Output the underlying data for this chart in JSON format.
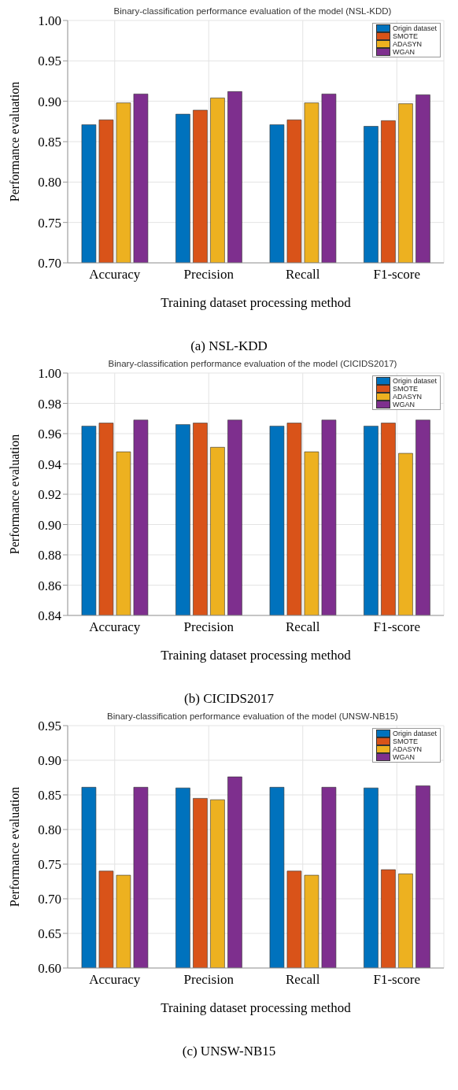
{
  "chart_data": [
    {
      "type": "bar",
      "title": "Binary-classification performance evaluation of the model (NSL-KDD)",
      "xlabel": "Training dataset processing method",
      "ylabel": "Performance evaluation",
      "categories": [
        "Accuracy",
        "Precision",
        "Recall",
        "F1-score"
      ],
      "series": [
        {
          "name": "Origin dataset",
          "color": "#0072bd",
          "values": [
            0.871,
            0.884,
            0.871,
            0.869
          ]
        },
        {
          "name": "SMOTE",
          "color": "#d95319",
          "values": [
            0.877,
            0.889,
            0.877,
            0.876
          ]
        },
        {
          "name": "ADASYN",
          "color": "#edb120",
          "values": [
            0.898,
            0.904,
            0.898,
            0.897
          ]
        },
        {
          "name": "WGAN",
          "color": "#7e2f8e",
          "values": [
            0.909,
            0.912,
            0.909,
            0.908
          ]
        }
      ],
      "ylim": [
        0.7,
        1.0
      ],
      "yticks": [
        {
          "value": 0.7,
          "label": "0.70"
        },
        {
          "value": 0.75,
          "label": "0.75"
        },
        {
          "value": 0.8,
          "label": "0.80"
        },
        {
          "value": 0.85,
          "label": "0.85"
        },
        {
          "value": 0.9,
          "label": "0.90"
        },
        {
          "value": 0.95,
          "label": "0.95"
        },
        {
          "value": 1.0,
          "label": "1.00"
        }
      ],
      "grid": true,
      "legend": "top right",
      "annotations": [
        "(a) NSL-KDD"
      ]
    },
    {
      "type": "bar",
      "title": "Binary-classification performance evaluation of the model (CICIDS2017)",
      "xlabel": "Training dataset processing method",
      "ylabel": "Performance evaluation",
      "categories": [
        "Accuracy",
        "Precision",
        "Recall",
        "F1-score"
      ],
      "series": [
        {
          "name": "Origin dataset",
          "color": "#0072bd",
          "values": [
            0.965,
            0.966,
            0.965,
            0.965
          ]
        },
        {
          "name": "SMOTE",
          "color": "#d95319",
          "values": [
            0.967,
            0.967,
            0.967,
            0.967
          ]
        },
        {
          "name": "ADASYN",
          "color": "#edb120",
          "values": [
            0.948,
            0.951,
            0.948,
            0.947
          ]
        },
        {
          "name": "WGAN",
          "color": "#7e2f8e",
          "values": [
            0.969,
            0.969,
            0.969,
            0.969
          ]
        }
      ],
      "ylim": [
        0.84,
        1.0
      ],
      "yticks": [
        {
          "value": 0.84,
          "label": "0.84"
        },
        {
          "value": 0.86,
          "label": "0.86"
        },
        {
          "value": 0.88,
          "label": "0.88"
        },
        {
          "value": 0.9,
          "label": "0.90"
        },
        {
          "value": 0.92,
          "label": "0.92"
        },
        {
          "value": 0.94,
          "label": "0.94"
        },
        {
          "value": 0.96,
          "label": "0.96"
        },
        {
          "value": 0.98,
          "label": "0.98"
        },
        {
          "value": 1.0,
          "label": "1.00"
        }
      ],
      "grid": true,
      "legend": "top right",
      "annotations": [
        "(b) CICIDS2017"
      ]
    },
    {
      "type": "bar",
      "title": "Binary-classification performance evaluation of the model (UNSW-NB15)",
      "xlabel": "Training dataset processing method",
      "ylabel": "Performance evaluation",
      "categories": [
        "Accuracy",
        "Precision",
        "Recall",
        "F1-score"
      ],
      "series": [
        {
          "name": "Origin dataset",
          "color": "#0072bd",
          "values": [
            0.861,
            0.86,
            0.861,
            0.86
          ]
        },
        {
          "name": "SMOTE",
          "color": "#d95319",
          "values": [
            0.74,
            0.845,
            0.74,
            0.742
          ]
        },
        {
          "name": "ADASYN",
          "color": "#edb120",
          "values": [
            0.734,
            0.843,
            0.734,
            0.736
          ]
        },
        {
          "name": "WGAN",
          "color": "#7e2f8e",
          "values": [
            0.861,
            0.876,
            0.861,
            0.863
          ]
        }
      ],
      "ylim": [
        0.6,
        0.95
      ],
      "yticks": [
        {
          "value": 0.6,
          "label": "0.60"
        },
        {
          "value": 0.65,
          "label": "0.65"
        },
        {
          "value": 0.7,
          "label": "0.70"
        },
        {
          "value": 0.75,
          "label": "0.75"
        },
        {
          "value": 0.8,
          "label": "0.80"
        },
        {
          "value": 0.85,
          "label": "0.85"
        },
        {
          "value": 0.9,
          "label": "0.90"
        },
        {
          "value": 0.95,
          "label": "0.95"
        }
      ],
      "grid": true,
      "legend": "top right",
      "annotations": [
        "(c) UNSW-NB15"
      ]
    }
  ]
}
